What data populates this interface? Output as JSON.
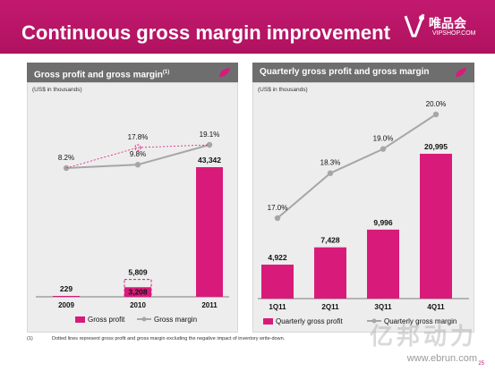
{
  "slide_title": "Continuous gross margin improvement",
  "logo": {
    "text": "唯品会",
    "sub": "VIPSHOP.COM"
  },
  "colors": {
    "brand": "#c2196f",
    "bar": "#d81b7a",
    "line": "#a6a6a6",
    "panel_bar": "#6e6e6e"
  },
  "left_panel": {
    "title": "Gross profit and gross margin",
    "title_sup": "(1)",
    "unit": "(US$ in thousands)"
  },
  "right_panel": {
    "title": "Quarterly gross profit and gross margin",
    "unit": "(US$ in thousands)"
  },
  "footnote": {
    "number": "(1)",
    "text": "Dotted lines represent gross profit and gross margin excluding the negative impact of inventory write-down."
  },
  "watermark": "亿邦动力",
  "watermark_url": "www.ebrun.com",
  "page_number": "25",
  "chart_data": [
    {
      "type": "bar",
      "categories": [
        "2009",
        "2010",
        "2011"
      ],
      "series": [
        {
          "name": "Gross profit",
          "values": [
            229,
            3208,
            43342
          ],
          "labels": [
            "229",
            "3,208",
            "43,342"
          ]
        },
        {
          "name": "Gross margin",
          "type": "line",
          "values": [
            8.2,
            9.8,
            19.1
          ],
          "labels": [
            "8.2%",
            "9.8%",
            "19.1%"
          ]
        }
      ],
      "adjusted": {
        "gross_profit": 5809,
        "gross_profit_label": "5,809",
        "gross_margin": 17.8,
        "gross_margin_label": "17.8%",
        "category": "2010"
      },
      "legend": [
        "Gross profit",
        "Gross margin"
      ]
    },
    {
      "type": "bar",
      "categories": [
        "1Q11",
        "2Q11",
        "3Q11",
        "4Q11"
      ],
      "series": [
        {
          "name": "Quarterly gross profit",
          "values": [
            4922,
            7428,
            9996,
            20995
          ],
          "labels": [
            "4,922",
            "7,428",
            "9,996",
            "20,995"
          ]
        },
        {
          "name": "Quarterly gross margin",
          "type": "line",
          "values": [
            17.0,
            18.3,
            19.0,
            20.0
          ],
          "labels": [
            "17.0%",
            "18.3%",
            "19.0%",
            "20.0%"
          ]
        }
      ],
      "legend": [
        "Quarterly gross profit",
        "Quarterly gross margin"
      ]
    }
  ]
}
